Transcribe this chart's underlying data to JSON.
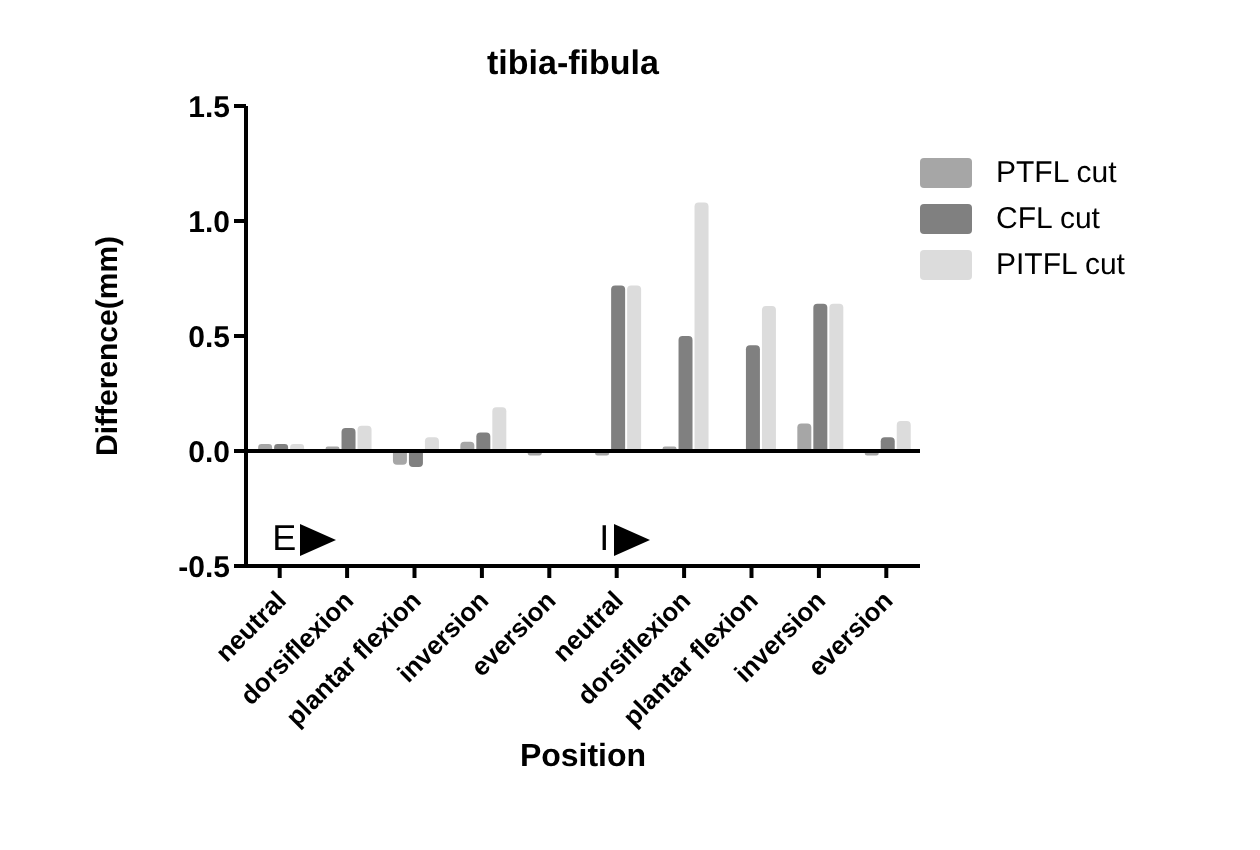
{
  "chart_data": {
    "type": "bar",
    "title": "tibia-fibula",
    "xlabel": "Position",
    "ylabel": "Difference(mm)",
    "categories": [
      "neutral",
      "dorsiflexion",
      "plantar flexion",
      "inversion",
      "eversion",
      "neutral",
      "dorsiflexion",
      "plantar flexion",
      "inversion",
      "eversion"
    ],
    "series": [
      {
        "name": "PTFL cut",
        "color": "#a6a6a6",
        "values": [
          0.03,
          0.02,
          -0.06,
          0.04,
          -0.02,
          -0.02,
          0.02,
          0.0,
          0.12,
          -0.02
        ]
      },
      {
        "name": "CFL cut",
        "color": "#808080",
        "values": [
          0.03,
          0.1,
          -0.07,
          0.08,
          0.0,
          0.72,
          0.5,
          0.46,
          0.64,
          0.06
        ]
      },
      {
        "name": "PITFL cut",
        "color": "#dcdcdc",
        "values": [
          0.03,
          0.11,
          0.06,
          0.19,
          0.0,
          0.72,
          1.08,
          0.63,
          0.64,
          0.13
        ]
      }
    ],
    "ylim": [
      -0.5,
      1.5
    ],
    "yticks": [
      {
        "value": -0.5,
        "label": "-0.5"
      },
      {
        "value": 0,
        "label": "0.0"
      },
      {
        "value": 0.5,
        "label": "0.5"
      },
      {
        "value": 1,
        "label": "1.0"
      },
      {
        "value": 1.5,
        "label": "1.5"
      }
    ],
    "ref_lines": [
      {
        "axis": "y",
        "value": 0,
        "color": "#000000"
      }
    ],
    "annotations": [
      "E",
      "I"
    ],
    "grid": false,
    "legend": "top right"
  }
}
